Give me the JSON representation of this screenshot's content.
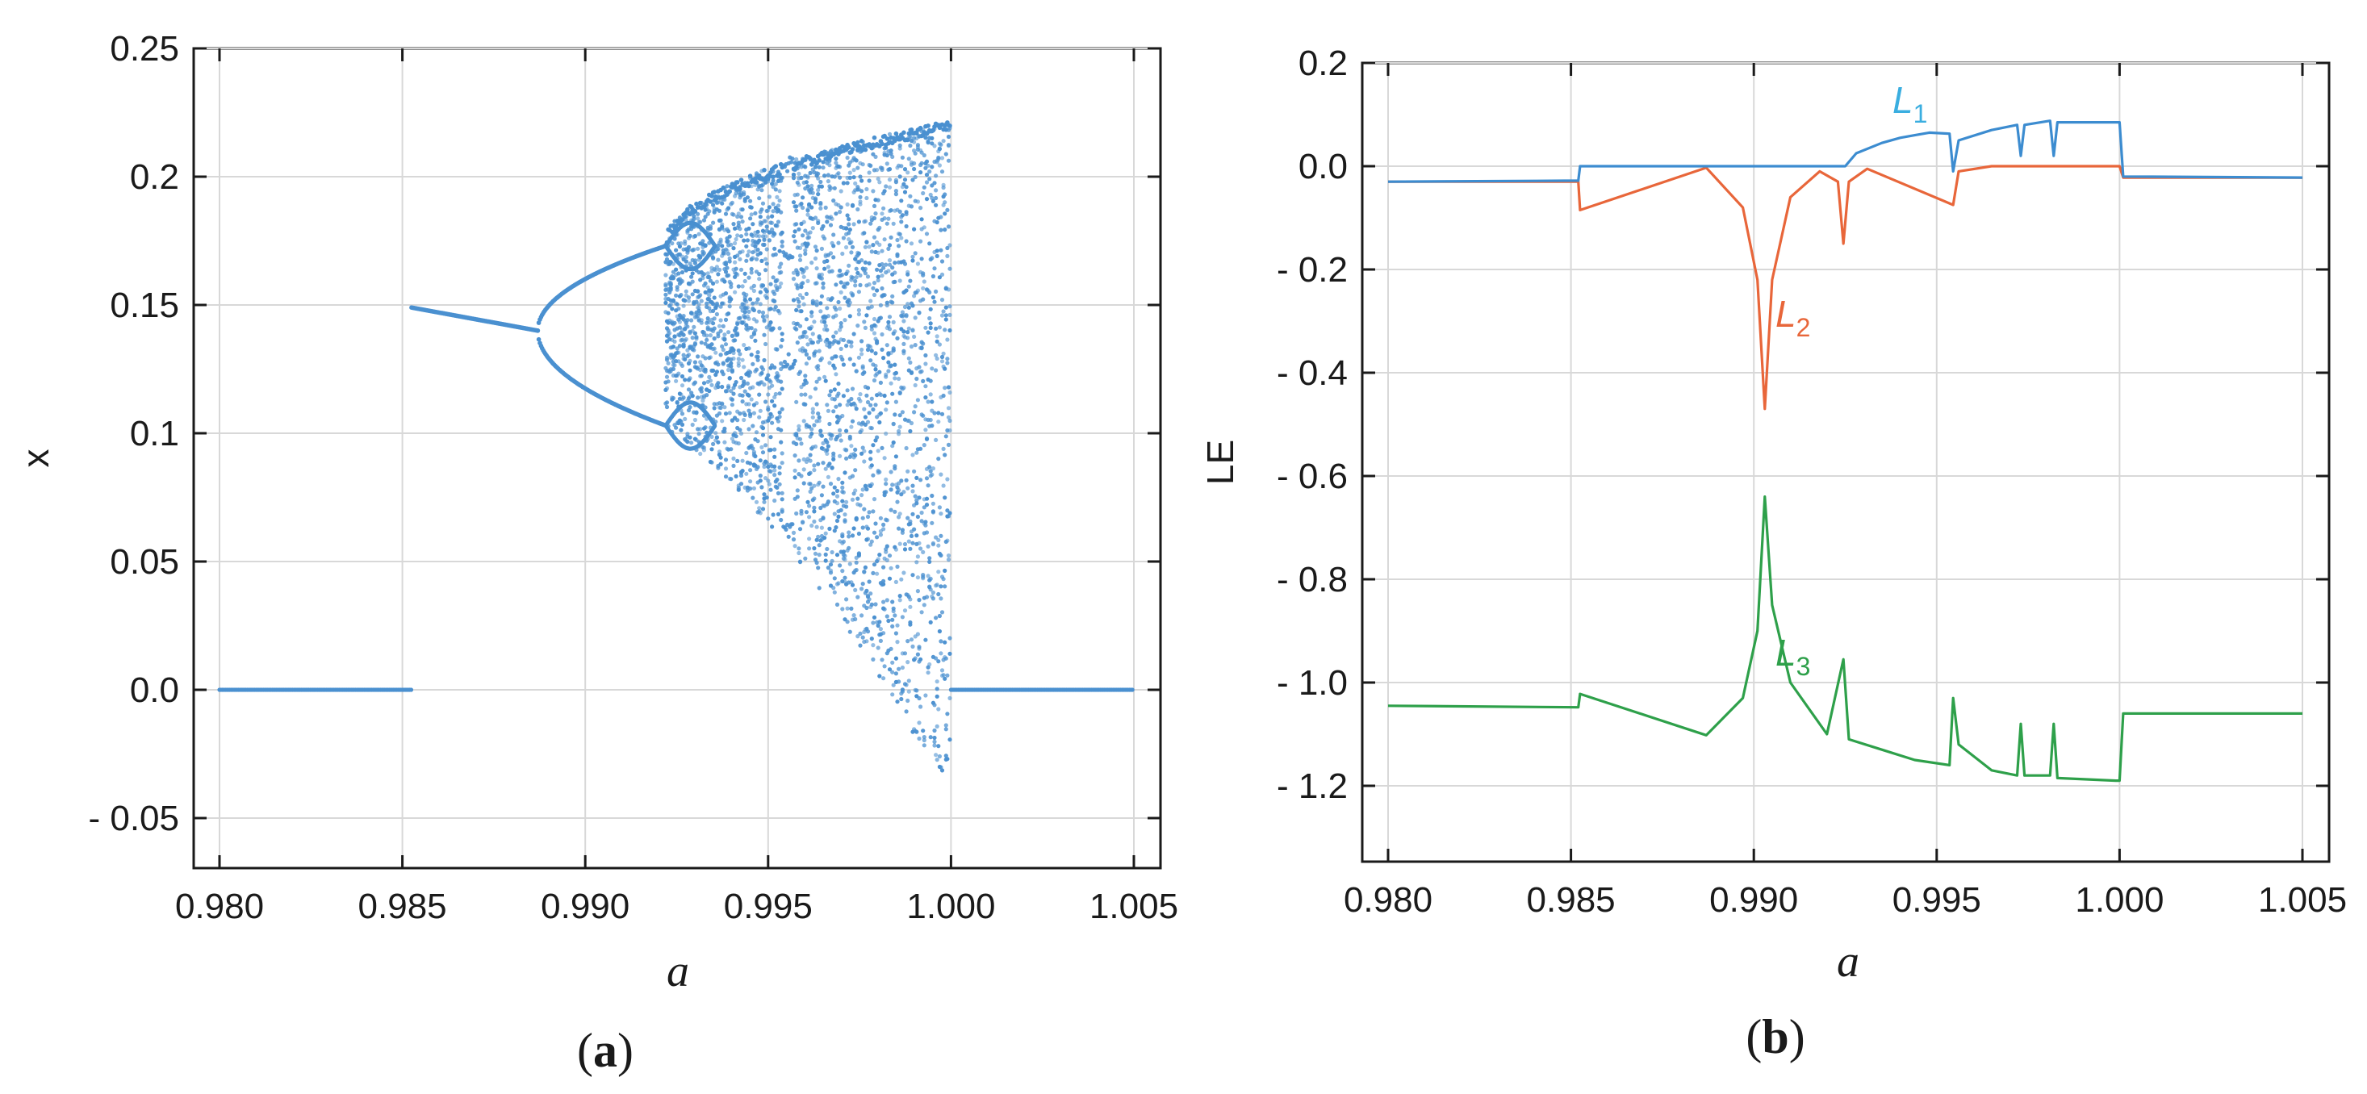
{
  "figure": {
    "panel_a_label": "a",
    "panel_b_label": "b"
  },
  "colors": {
    "bifurcation": "#4a90d0",
    "L1": "#3c8cd0",
    "L2": "#e8663a",
    "L3": "#2ea04a",
    "L1_label": "#3aaee0",
    "grid": "#d8d8d8"
  },
  "chart_data": [
    {
      "type": "scatter",
      "panel": "a",
      "xlabel": "a",
      "ylabel": "x",
      "xlim": [
        0.98,
        1.005
      ],
      "ylim": [
        -0.07,
        0.25
      ],
      "xticks": [
        "0.980",
        "0.985",
        "0.990",
        "0.995",
        "1.000",
        "1.005"
      ],
      "xtick_values": [
        0.98,
        0.985,
        0.99,
        0.995,
        1.0,
        1.005
      ],
      "yticks": [
        "- 0.05",
        "0.0",
        "0.05",
        "0.1",
        "0.15",
        "0.2",
        "0.25"
      ],
      "ytick_values": [
        -0.05,
        0.0,
        0.05,
        0.1,
        0.15,
        0.2,
        0.25
      ],
      "grid": true,
      "features": {
        "fixed_point_zero": [
          [
            0.98,
            0.0
          ],
          [
            0.98525,
            0.0
          ]
        ],
        "period1_branch": [
          [
            0.98525,
            0.149
          ],
          [
            0.9887,
            0.14
          ]
        ],
        "period2_upper": [
          [
            0.9887,
            0.14
          ],
          [
            0.9922,
            0.173
          ]
        ],
        "period2_lower": [
          [
            0.9887,
            0.14
          ],
          [
            0.9922,
            0.103
          ]
        ],
        "period4_bubbles": [
          [
            0.9922,
            0.173
          ],
          [
            0.9935,
            0.173
          ],
          [
            0.9922,
            0.103
          ],
          [
            0.9935,
            0.103
          ]
        ],
        "chaotic_band_top": [
          [
            0.9922,
            0.175
          ],
          [
            0.995,
            0.205
          ],
          [
            0.998,
            0.219
          ],
          [
            1.0,
            0.222
          ]
        ],
        "chaotic_band_bottom": [
          [
            0.9922,
            0.1
          ],
          [
            0.9955,
            0.06
          ],
          [
            0.998,
            0.01
          ],
          [
            1.0,
            -0.042
          ]
        ],
        "periodic_window": [
          0.9954,
          0.9957
        ],
        "fixed_point_zero_after": [
          [
            1.0,
            0.0
          ],
          [
            1.005,
            0.0
          ]
        ]
      }
    },
    {
      "type": "line",
      "panel": "b",
      "xlabel": "a",
      "ylabel": "LE",
      "xlim": [
        0.98,
        1.005
      ],
      "ylim": [
        -1.3,
        0.2
      ],
      "xticks": [
        "0.980",
        "0.985",
        "0.990",
        "0.995",
        "1.000",
        "1.005"
      ],
      "xtick_values": [
        0.98,
        0.985,
        0.99,
        0.995,
        1.0,
        1.005
      ],
      "yticks": [
        "- 1.2",
        "- 1.0",
        "- 0.8",
        "- 0.6",
        "- 0.4",
        "- 0.2",
        "0.0",
        "0.2"
      ],
      "ytick_values": [
        -1.2,
        -1.0,
        -0.8,
        -0.6,
        -0.4,
        -0.2,
        0.0,
        0.2
      ],
      "grid": true,
      "series": [
        {
          "name": "L",
          "sub": "1",
          "points": [
            [
              0.98,
              -0.03
            ],
            [
              0.9852,
              -0.028
            ],
            [
              0.98525,
              0.0
            ],
            [
              0.9925,
              0.0
            ],
            [
              0.9928,
              0.025
            ],
            [
              0.9935,
              0.045
            ],
            [
              0.994,
              0.055
            ],
            [
              0.9944,
              0.06
            ],
            [
              0.9948,
              0.065
            ],
            [
              0.99535,
              0.063
            ],
            [
              0.99545,
              -0.01
            ],
            [
              0.9956,
              0.05
            ],
            [
              0.9965,
              0.07
            ],
            [
              0.9972,
              0.08
            ],
            [
              0.9973,
              0.02
            ],
            [
              0.9974,
              0.08
            ],
            [
              0.9981,
              0.088
            ],
            [
              0.9982,
              0.02
            ],
            [
              0.9983,
              0.085
            ],
            [
              0.9999,
              0.085
            ],
            [
              1.0,
              0.085
            ],
            [
              1.0001,
              -0.02
            ],
            [
              1.005,
              -0.022
            ]
          ]
        },
        {
          "name": "L",
          "sub": "2",
          "points": [
            [
              0.98,
              -0.03
            ],
            [
              0.9852,
              -0.03
            ],
            [
              0.98525,
              -0.085
            ],
            [
              0.9887,
              -0.003
            ],
            [
              0.9897,
              -0.08
            ],
            [
              0.9901,
              -0.22
            ],
            [
              0.9903,
              -0.47
            ],
            [
              0.9905,
              -0.22
            ],
            [
              0.991,
              -0.06
            ],
            [
              0.9918,
              -0.01
            ],
            [
              0.9923,
              -0.03
            ],
            [
              0.99245,
              -0.15
            ],
            [
              0.9926,
              -0.03
            ],
            [
              0.9931,
              -0.005
            ],
            [
              0.99545,
              -0.075
            ],
            [
              0.9956,
              -0.01
            ],
            [
              0.9965,
              0.0
            ],
            [
              1.0,
              0.0
            ],
            [
              1.0001,
              -0.022
            ],
            [
              1.005,
              -0.022
            ]
          ]
        },
        {
          "name": "L",
          "sub": "3",
          "points": [
            [
              0.98,
              -1.045
            ],
            [
              0.9852,
              -1.048
            ],
            [
              0.98525,
              -1.022
            ],
            [
              0.9887,
              -1.102
            ],
            [
              0.9897,
              -1.03
            ],
            [
              0.9901,
              -0.9
            ],
            [
              0.9903,
              -0.64
            ],
            [
              0.9905,
              -0.85
            ],
            [
              0.991,
              -1.0
            ],
            [
              0.992,
              -1.1
            ],
            [
              0.99245,
              -0.955
            ],
            [
              0.9926,
              -1.11
            ],
            [
              0.9935,
              -1.13
            ],
            [
              0.9944,
              -1.15
            ],
            [
              0.99535,
              -1.16
            ],
            [
              0.99545,
              -1.03
            ],
            [
              0.9956,
              -1.12
            ],
            [
              0.9965,
              -1.17
            ],
            [
              0.9972,
              -1.18
            ],
            [
              0.9973,
              -1.08
            ],
            [
              0.9974,
              -1.18
            ],
            [
              0.9981,
              -1.18
            ],
            [
              0.9982,
              -1.08
            ],
            [
              0.9983,
              -1.185
            ],
            [
              0.9999,
              -1.19
            ],
            [
              1.0,
              -1.19
            ],
            [
              1.0001,
              -1.06
            ],
            [
              1.005,
              -1.06
            ]
          ]
        }
      ]
    }
  ]
}
